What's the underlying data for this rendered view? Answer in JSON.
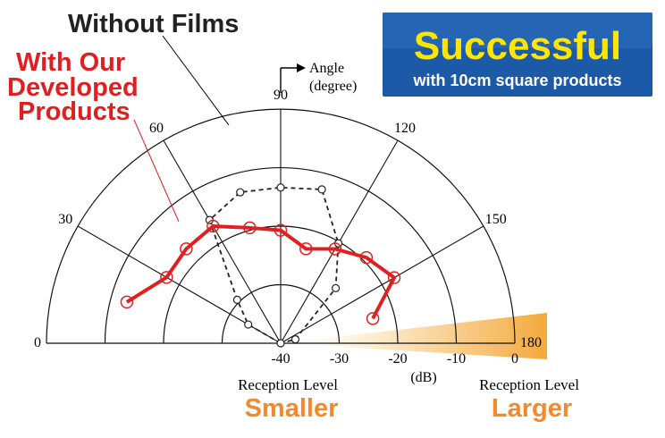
{
  "annotations": {
    "without_films": "Without Films",
    "with_products": [
      "With Our",
      "Developed",
      "Products"
    ],
    "angle": [
      "Angle",
      "(degree)"
    ],
    "reception_level_left": "Reception Level",
    "reception_level_right": "Reception Level",
    "smaller": "Smaller",
    "larger": "Larger",
    "db_unit": "(dB)"
  },
  "banner": {
    "title": "Successful",
    "subtitle": "with 10cm square products",
    "background": "#1c5aa8",
    "title_color": "#ffe600"
  },
  "colors": {
    "with_products": "#e02020",
    "without_films": "#222222",
    "orange_text": "#f08a2c",
    "red_text": "#e02020"
  },
  "chart_data": {
    "type": "polar-half",
    "angle_unit": "degree",
    "angle_ticks": [
      0,
      30,
      60,
      90,
      120,
      150,
      180
    ],
    "radial_unit": "dB",
    "radial_ticks": [
      -40,
      -30,
      -20,
      -10,
      0
    ],
    "radial_range": [
      -40,
      0
    ],
    "series": [
      {
        "name": "With Our Developed Products",
        "points": [
          {
            "angle": 15,
            "level": -12.8
          },
          {
            "angle": 30,
            "level": -17.5
          },
          {
            "angle": 45,
            "level": -17.2
          },
          {
            "angle": 60,
            "level": -16.9
          },
          {
            "angle": 75,
            "level": -19.6
          },
          {
            "angle": 90,
            "level": -20.7
          },
          {
            "angle": 105,
            "level": -23.3
          },
          {
            "angle": 120,
            "level": -21.4
          },
          {
            "angle": 135,
            "level": -19.3
          },
          {
            "angle": 150,
            "level": -17.6
          },
          {
            "angle": 165,
            "level": -23.7
          }
        ]
      },
      {
        "name": "Without Films",
        "points": [
          {
            "angle": 30,
            "level": -33.6
          },
          {
            "angle": 45,
            "level": -29.5
          },
          {
            "angle": 60,
            "level": -15.7
          },
          {
            "angle": 75,
            "level": -13.3
          },
          {
            "angle": 90,
            "level": -13.4
          },
          {
            "angle": 105,
            "level": -12.8
          },
          {
            "angle": 120,
            "level": -20.3
          },
          {
            "angle": 135,
            "level": -26.7
          },
          {
            "angle": 165,
            "level": -37.4
          }
        ]
      }
    ]
  }
}
